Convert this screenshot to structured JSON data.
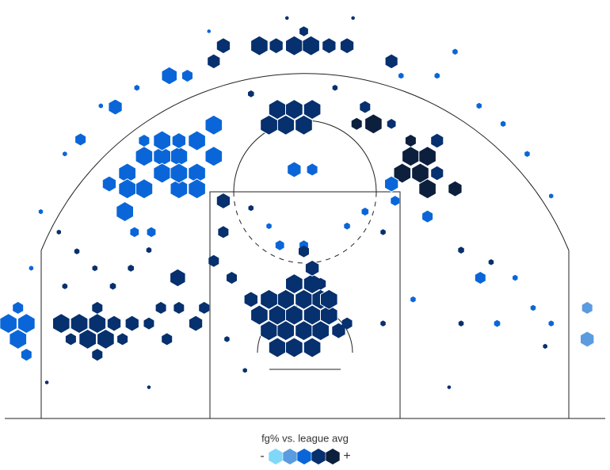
{
  "chart_data": {
    "type": "hexbin",
    "xlim": [
      -25.4,
      25.4
    ],
    "ylim": [
      0,
      34.8
    ],
    "colors": [
      "#7fd8f7",
      "#5b9be0",
      "#0a66d8",
      "#06306e",
      "#0c1f3d"
    ],
    "legend": {
      "label": "fg% vs. league avg",
      "low": "-",
      "high": "+"
    },
    "hexes": [
      [
        -7.6,
        24.4,
        1,
        2
      ],
      [
        -9.0,
        23.1,
        1,
        2
      ],
      [
        -7.6,
        21.8,
        1,
        2
      ],
      [
        -10.5,
        21.8,
        1,
        2
      ],
      [
        -9.0,
        20.4,
        1,
        2
      ],
      [
        -11.9,
        21.8,
        1,
        2
      ],
      [
        -13.4,
        21.8,
        1,
        2
      ],
      [
        -14.8,
        20.4,
        1,
        2
      ],
      [
        -13.4,
        19.1,
        1,
        2
      ],
      [
        -10.5,
        19.1,
        1,
        2
      ],
      [
        -9.0,
        19.1,
        1,
        2
      ],
      [
        -11.9,
        20.4,
        1,
        2
      ],
      [
        -10.5,
        20.4,
        1,
        2
      ],
      [
        -14.8,
        19.1,
        1,
        2
      ],
      [
        -15.0,
        17.2,
        1,
        2
      ],
      [
        -16.3,
        19.5,
        0.8,
        2
      ],
      [
        -13.4,
        23.1,
        0.6,
        2
      ],
      [
        -11.9,
        23.1,
        1,
        2
      ],
      [
        -10.5,
        23.1,
        0.8,
        2
      ],
      [
        -11.3,
        28.5,
        0.9,
        2
      ],
      [
        -9.8,
        28.5,
        0.6,
        2
      ],
      [
        -15.8,
        25.9,
        0.8,
        2
      ],
      [
        -18.7,
        23.2,
        0.6,
        2
      ],
      [
        -12.8,
        15.5,
        0.5,
        2
      ],
      [
        -14.2,
        15.5,
        0.5,
        2
      ],
      [
        -2.3,
        25.7,
        1,
        3
      ],
      [
        -0.9,
        25.7,
        1,
        3
      ],
      [
        0.6,
        25.7,
        1,
        3
      ],
      [
        -1.6,
        24.4,
        1,
        3
      ],
      [
        -0.1,
        24.4,
        1,
        3
      ],
      [
        -3.0,
        24.4,
        1,
        3
      ],
      [
        5.7,
        24.5,
        1,
        4
      ],
      [
        4.3,
        24.5,
        0.6,
        4
      ],
      [
        7.2,
        24.5,
        0.5,
        3
      ],
      [
        5.0,
        25.9,
        0.6,
        3
      ],
      [
        8.8,
        21.8,
        1,
        4
      ],
      [
        10.2,
        21.8,
        1,
        4
      ],
      [
        9.6,
        20.4,
        1,
        4
      ],
      [
        11.0,
        20.4,
        0.7,
        3
      ],
      [
        12.5,
        19.1,
        0.8,
        4
      ],
      [
        8.1,
        20.4,
        1,
        4
      ],
      [
        10.2,
        19.1,
        1,
        4
      ],
      [
        8.8,
        23.1,
        0.6,
        4
      ],
      [
        11.0,
        23.1,
        0.7,
        3
      ],
      [
        7.2,
        19.5,
        0.8,
        2
      ],
      [
        10.2,
        16.8,
        0.6,
        2
      ],
      [
        14.6,
        11.7,
        0.6,
        2
      ],
      [
        7.5,
        18.1,
        0.5,
        2
      ],
      [
        -0.9,
        20.7,
        0.8,
        2
      ],
      [
        0.6,
        20.7,
        0.6,
        2
      ],
      [
        -2.1,
        14.4,
        0.5,
        2
      ],
      [
        -0.1,
        14.4,
        0.5,
        2
      ],
      [
        -1.6,
        9.9,
        1,
        3
      ],
      [
        -0.1,
        9.9,
        1,
        3
      ],
      [
        1.3,
        9.9,
        1,
        3
      ],
      [
        -3.0,
        9.9,
        1,
        3
      ],
      [
        -0.9,
        11.2,
        1,
        3
      ],
      [
        0.6,
        11.2,
        1,
        3
      ],
      [
        -2.3,
        8.6,
        1,
        3
      ],
      [
        -0.9,
        8.6,
        1,
        3
      ],
      [
        0.6,
        8.6,
        1,
        3
      ],
      [
        2.0,
        8.6,
        1,
        3
      ],
      [
        -3.8,
        8.6,
        1,
        3
      ],
      [
        -3.0,
        7.3,
        1,
        3
      ],
      [
        -1.6,
        7.3,
        1,
        3
      ],
      [
        -0.1,
        7.3,
        1,
        3
      ],
      [
        1.3,
        7.3,
        1,
        3
      ],
      [
        2.8,
        7.3,
        0.8,
        3
      ],
      [
        -2.3,
        5.9,
        1,
        3
      ],
      [
        -0.9,
        5.9,
        1,
        3
      ],
      [
        0.6,
        5.9,
        1,
        3
      ],
      [
        0.6,
        12.5,
        0.8,
        3
      ],
      [
        1.3,
        11.2,
        0.6,
        3
      ],
      [
        2.0,
        9.9,
        1,
        3
      ],
      [
        -4.5,
        9.9,
        0.8,
        3
      ],
      [
        3.5,
        7.9,
        0.6,
        3
      ],
      [
        -0.1,
        13.9,
        0.6,
        3
      ],
      [
        -20.3,
        7.9,
        1,
        3
      ],
      [
        -18.8,
        7.9,
        1,
        3
      ],
      [
        -17.3,
        7.9,
        1,
        3
      ],
      [
        -15.9,
        7.9,
        0.8,
        3
      ],
      [
        -14.4,
        7.9,
        0.8,
        3
      ],
      [
        -13.0,
        7.9,
        0.6,
        3
      ],
      [
        -18.1,
        6.6,
        1,
        3
      ],
      [
        -16.6,
        6.6,
        1,
        3
      ],
      [
        -19.5,
        6.6,
        0.6,
        3
      ],
      [
        -17.3,
        5.3,
        0.6,
        3
      ],
      [
        -15.2,
        6.6,
        0.6,
        3
      ],
      [
        -11.5,
        6.6,
        0.6,
        3
      ],
      [
        -17.3,
        9.2,
        0.6,
        3
      ],
      [
        -9.1,
        7.9,
        0.8,
        3
      ],
      [
        -8.4,
        9.2,
        0.6,
        3
      ],
      [
        -10.5,
        9.2,
        0.6,
        3
      ],
      [
        -12.0,
        9.2,
        0.6,
        3
      ],
      [
        -24.7,
        7.9,
        1,
        2
      ],
      [
        -23.2,
        7.9,
        1,
        2
      ],
      [
        -23.9,
        6.6,
        1,
        2
      ],
      [
        -23.9,
        9.2,
        0.6,
        2
      ],
      [
        -23.2,
        5.3,
        0.6,
        2
      ],
      [
        -3.8,
        31.0,
        1,
        3
      ],
      [
        -2.4,
        31.0,
        0.8,
        3
      ],
      [
        -0.9,
        31.0,
        1,
        3
      ],
      [
        0.5,
        31.0,
        1,
        3
      ],
      [
        2.0,
        31.0,
        0.8,
        3
      ],
      [
        3.5,
        31.0,
        0.8,
        3
      ],
      [
        -6.8,
        31.0,
        0.8,
        3
      ],
      [
        -7.6,
        29.7,
        0.7,
        3
      ],
      [
        -0.1,
        32.2,
        0.5,
        3
      ],
      [
        7.2,
        29.7,
        0.7,
        3
      ],
      [
        23.5,
        9.2,
        0.6,
        1
      ],
      [
        23.5,
        6.6,
        0.8,
        1
      ],
      [
        -10.6,
        11.7,
        0.9,
        3
      ],
      [
        -6.8,
        15.5,
        0.6,
        3
      ],
      [
        -6.8,
        18.1,
        0.8,
        3
      ],
      [
        -7.6,
        13.1,
        0.6,
        3
      ],
      [
        -6.1,
        11.7,
        0.6,
        3
      ],
      [
        -22.0,
        17.2,
        0.25,
        2
      ],
      [
        -20.5,
        15.5,
        0.25,
        3
      ],
      [
        -19.0,
        13.9,
        0.3,
        3
      ],
      [
        -17.5,
        12.5,
        0.3,
        3
      ],
      [
        -22.8,
        12.5,
        0.25,
        2
      ],
      [
        -20.0,
        11.0,
        0.3,
        3
      ],
      [
        -16.0,
        11.0,
        0.35,
        3
      ],
      [
        -14.5,
        12.5,
        0.35,
        3
      ],
      [
        -13.0,
        14.0,
        0.3,
        3
      ],
      [
        -4.5,
        17.5,
        0.3,
        3
      ],
      [
        -3.0,
        16.0,
        0.3,
        2
      ],
      [
        3.5,
        16.0,
        0.35,
        2
      ],
      [
        5.0,
        17.2,
        0.4,
        2
      ],
      [
        6.5,
        15.5,
        0.3,
        3
      ],
      [
        13.0,
        14.0,
        0.35,
        3
      ],
      [
        15.5,
        13.0,
        0.3,
        3
      ],
      [
        17.5,
        11.7,
        0.3,
        2
      ],
      [
        19.0,
        9.2,
        0.3,
        2
      ],
      [
        20.5,
        7.9,
        0.3,
        2
      ],
      [
        16.0,
        7.9,
        0.35,
        2
      ],
      [
        13.0,
        7.9,
        0.3,
        3
      ],
      [
        9.0,
        9.9,
        0.3,
        2
      ],
      [
        6.5,
        7.9,
        0.3,
        3
      ],
      [
        -6.5,
        6.6,
        0.3,
        3
      ],
      [
        -5.0,
        4.0,
        0.25,
        3
      ],
      [
        -21.5,
        3.0,
        0.2,
        3
      ],
      [
        -13.0,
        2.6,
        0.2,
        3
      ],
      [
        12.0,
        2.6,
        0.2,
        3
      ],
      [
        20.0,
        6.0,
        0.25,
        3
      ],
      [
        -20.0,
        22.0,
        0.25,
        2
      ],
      [
        -17.0,
        26.0,
        0.25,
        2
      ],
      [
        -14.0,
        27.5,
        0.3,
        2
      ],
      [
        -4.5,
        27.0,
        0.35,
        3
      ],
      [
        2.5,
        27.5,
        0.3,
        3
      ],
      [
        8.0,
        28.5,
        0.3,
        2
      ],
      [
        11.0,
        28.5,
        0.3,
        2
      ],
      [
        14.5,
        26.0,
        0.3,
        2
      ],
      [
        16.5,
        24.5,
        0.3,
        2
      ],
      [
        18.5,
        22.0,
        0.3,
        2
      ],
      [
        20.5,
        18.5,
        0.25,
        2
      ],
      [
        -1.5,
        33.3,
        0.2,
        3
      ],
      [
        4.0,
        33.3,
        0.2,
        3
      ],
      [
        -8.0,
        32.2,
        0.2,
        2
      ],
      [
        12.5,
        30.5,
        0.3,
        2
      ]
    ]
  }
}
